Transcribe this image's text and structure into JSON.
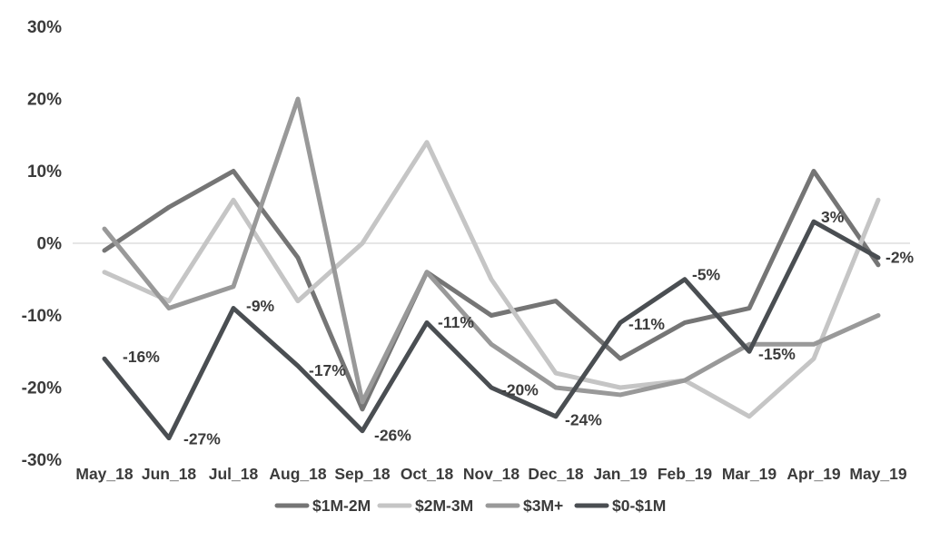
{
  "chart_data": {
    "type": "line",
    "title": "",
    "xlabel": "",
    "ylabel": "",
    "categories": [
      "May_18",
      "Jun_18",
      "Jul_18",
      "Aug_18",
      "Sep_18",
      "Oct_18",
      "Nov_18",
      "Dec_18",
      "Jan_19",
      "Feb_19",
      "Mar_19",
      "Apr_19",
      "May_19"
    ],
    "y_ticks": [
      "30%",
      "20%",
      "10%",
      "0%",
      "-10%",
      "-20%",
      "-30%"
    ],
    "ylim": [
      -30,
      30
    ],
    "grid": "zero-line-only",
    "legend_position": "bottom-center",
    "series": [
      {
        "name": "$1M-2M",
        "color": "#757575",
        "values": [
          -1,
          5,
          10,
          -2,
          -23,
          -4,
          -10,
          -8,
          -16,
          -11,
          -9,
          10,
          -3
        ]
      },
      {
        "name": "$2M-3M",
        "color": "#c5c5c5",
        "values": [
          -4,
          -8,
          6,
          -8,
          0,
          14,
          -5,
          -18,
          -20,
          -19,
          -24,
          -16,
          6
        ]
      },
      {
        "name": "$3M+",
        "color": "#999999",
        "values": [
          2,
          -9,
          -6,
          20,
          -22,
          -4,
          -14,
          -20,
          -21,
          -19,
          -14,
          -14,
          -10
        ]
      },
      {
        "name": "$0-$1M",
        "color": "#4a4e52",
        "values": [
          -16,
          -27,
          -9,
          -17,
          -26,
          -11,
          -20,
          -24,
          -11,
          -5,
          -15,
          3,
          -2
        ],
        "point_labels": [
          "-16%",
          "-27%",
          "-9%",
          "-17%",
          "-26%",
          "-11%",
          "-20%",
          "-24%",
          "-11%",
          "-5%",
          "-15%",
          "3%",
          "-2%"
        ]
      }
    ]
  },
  "colors": {
    "background": "#ffffff",
    "axis_text": "#3b3b3b",
    "zero_line": "#dedede"
  }
}
